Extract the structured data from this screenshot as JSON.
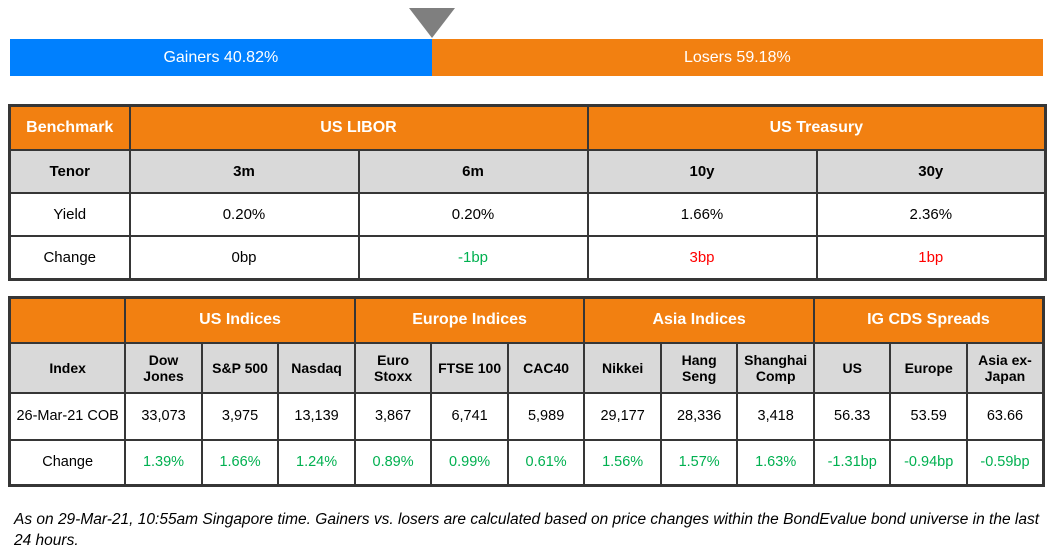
{
  "colors": {
    "gainers_blue": "#0080fe",
    "losers_orange": "#f28011",
    "header_orange": "#f28011",
    "subheader_gray": "#d9d9d9",
    "positive_green": "#00b050",
    "negative_red": "#ff0000",
    "pointer_gray": "#7f7f7f",
    "border_dark": "#363636"
  },
  "gainers_losers": {
    "gainers_label": "Gainers 40.82%",
    "losers_label": "Losers 59.18%",
    "gainers_pct": 40.82,
    "losers_pct": 59.18
  },
  "benchmark_table": {
    "corner_label": "Benchmark",
    "group_headers": [
      {
        "label": "US LIBOR"
      },
      {
        "label": "US Treasury"
      }
    ],
    "tenor_row": {
      "label": "Tenor",
      "tenors": [
        "3m",
        "6m",
        "10y",
        "30y"
      ]
    },
    "yield_row": {
      "label": "Yield",
      "values": [
        "0.20%",
        "0.20%",
        "1.66%",
        "2.36%"
      ]
    },
    "change_row": {
      "label": "Change",
      "values": [
        "0bp",
        "-1bp",
        "3bp",
        "1bp"
      ]
    }
  },
  "indices_table": {
    "corner_label": "Index",
    "groups": [
      {
        "label": "US Indices",
        "cols": [
          "Dow Jones",
          "S&P 500",
          "Nasdaq"
        ]
      },
      {
        "label": "Europe Indices",
        "cols": [
          "Euro Stoxx",
          "FTSE 100",
          "CAC40"
        ]
      },
      {
        "label": "Asia Indices",
        "cols": [
          "Nikkei",
          "Hang Seng",
          "Shanghai Comp"
        ]
      },
      {
        "label": "IG CDS Spreads",
        "cols": [
          "US",
          "Europe",
          "Asia ex-Japan"
        ]
      }
    ],
    "data_row": {
      "label": "26-Mar-21 COB",
      "values": [
        "33,073",
        "3,975",
        "13,139",
        "3,867",
        "6,741",
        "5,989",
        "29,177",
        "28,336",
        "3,418",
        "56.33",
        "53.59",
        "63.66"
      ]
    },
    "change_row": {
      "label": "Change",
      "values": [
        "1.39%",
        "1.66%",
        "1.24%",
        "0.89%",
        "0.99%",
        "0.61%",
        "1.56%",
        "1.57%",
        "1.63%",
        "-1.31bp",
        "-0.94bp",
        "-0.59bp"
      ]
    }
  },
  "footer": {
    "note": "As on 29-Mar-21, 10:55am Singapore time. Gainers vs. losers are calculated based on price changes within the BondEvalue bond universe in the last 24 hours."
  },
  "chart_data": [
    {
      "type": "bar",
      "title": "Gainers vs Losers",
      "categories": [
        "Gainers",
        "Losers"
      ],
      "values": [
        40.82,
        59.18
      ],
      "unit": "%",
      "orientation": "horizontal-stacked",
      "colors": [
        "#0080fe",
        "#f28011"
      ],
      "annotations": [
        "pointer triangle at gainers/losers boundary"
      ]
    },
    {
      "type": "table",
      "title": "Benchmark",
      "column_groups": [
        {
          "label": "US LIBOR",
          "columns": [
            "3m",
            "6m"
          ]
        },
        {
          "label": "US Treasury",
          "columns": [
            "10y",
            "30y"
          ]
        }
      ],
      "columns": [
        "Tenor",
        "3m",
        "6m",
        "10y",
        "30y"
      ],
      "rows": [
        [
          "Yield",
          "0.20%",
          "0.20%",
          "1.66%",
          "2.36%"
        ],
        [
          "Change",
          "0bp",
          "-1bp",
          "3bp",
          "1bp"
        ]
      ]
    },
    {
      "type": "table",
      "title": "Indices and IG CDS Spreads",
      "column_groups": [
        {
          "label": "US Indices",
          "columns": [
            "Dow Jones",
            "S&P 500",
            "Nasdaq"
          ]
        },
        {
          "label": "Europe Indices",
          "columns": [
            "Euro Stoxx",
            "FTSE 100",
            "CAC40"
          ]
        },
        {
          "label": "Asia Indices",
          "columns": [
            "Nikkei",
            "Hang Seng",
            "Shanghai Comp"
          ]
        },
        {
          "label": "IG CDS Spreads",
          "columns": [
            "US",
            "Europe",
            "Asia ex-Japan"
          ]
        }
      ],
      "columns": [
        "Index",
        "Dow Jones",
        "S&P 500",
        "Nasdaq",
        "Euro Stoxx",
        "FTSE 100",
        "CAC40",
        "Nikkei",
        "Hang Seng",
        "Shanghai Comp",
        "US",
        "Europe",
        "Asia ex-Japan"
      ],
      "rows": [
        [
          "26-Mar-21 COB",
          "33,073",
          "3,975",
          "13,139",
          "3,867",
          "6,741",
          "5,989",
          "29,177",
          "28,336",
          "3,418",
          "56.33",
          "53.59",
          "63.66"
        ],
        [
          "Change",
          "1.39%",
          "1.66%",
          "1.24%",
          "0.89%",
          "0.99%",
          "0.61%",
          "1.56%",
          "1.57%",
          "1.63%",
          "-1.31bp",
          "-0.94bp",
          "-0.59bp"
        ]
      ]
    }
  ]
}
